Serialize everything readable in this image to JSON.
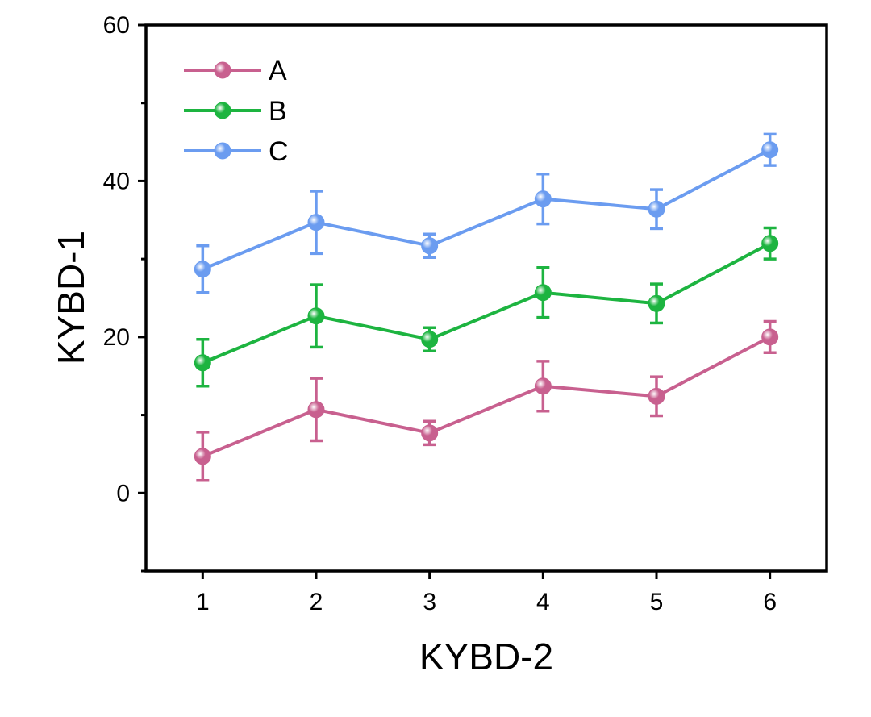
{
  "chart_data": {
    "type": "line",
    "xlabel": "KYBD-2",
    "ylabel": "KYBD-1",
    "x": [
      1,
      2,
      3,
      4,
      5,
      6
    ],
    "xlim": [
      0.5,
      6.5
    ],
    "ylim": [
      -10,
      60
    ],
    "yticks": [
      0,
      20,
      40,
      60
    ],
    "xticks": [
      1,
      2,
      3,
      4,
      5,
      6
    ],
    "legend_position": "top-left",
    "grid": false,
    "series": [
      {
        "name": "A",
        "color": "#C8608F",
        "values": [
          4.7,
          10.7,
          7.7,
          13.7,
          12.4,
          20.0
        ],
        "errors": [
          3.1,
          4.0,
          1.5,
          3.2,
          2.5,
          2.0
        ]
      },
      {
        "name": "B",
        "color": "#1DB440",
        "values": [
          16.7,
          22.7,
          19.7,
          25.7,
          24.3,
          32.0
        ],
        "errors": [
          3.0,
          4.0,
          1.5,
          3.2,
          2.5,
          2.0
        ]
      },
      {
        "name": "C",
        "color": "#6B9CF0",
        "values": [
          28.7,
          34.7,
          31.7,
          37.7,
          36.4,
          44.0
        ],
        "errors": [
          3.0,
          4.0,
          1.5,
          3.2,
          2.5,
          2.0
        ]
      }
    ]
  }
}
